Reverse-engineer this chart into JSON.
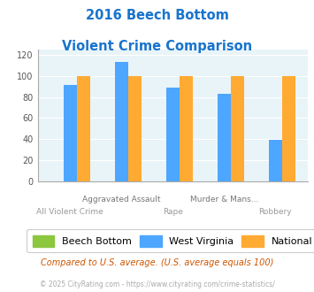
{
  "title_line1": "2016 Beech Bottom",
  "title_line2": "Violent Crime Comparison",
  "title_color": "#1874cd",
  "categories": [
    "All Violent Crime",
    "Aggravated Assault",
    "Rape",
    "Murder & Mans...",
    "Robbery"
  ],
  "top_labels": [
    "",
    "Aggravated Assault",
    "",
    "Murder & Mans...",
    ""
  ],
  "bottom_labels": [
    "All Violent Crime",
    "",
    "Rape",
    "",
    "Robbery"
  ],
  "beech_bottom": [
    0,
    0,
    0,
    0,
    0
  ],
  "west_virginia": [
    91,
    113,
    89,
    83,
    39
  ],
  "national": [
    100,
    100,
    100,
    100,
    100
  ],
  "bar_colors": {
    "beech_bottom": "#8dc63f",
    "west_virginia": "#4da6ff",
    "national": "#ffaa33"
  },
  "ylim": [
    0,
    125
  ],
  "yticks": [
    0,
    20,
    40,
    60,
    80,
    100,
    120
  ],
  "legend_labels": [
    "Beech Bottom",
    "West Virginia",
    "National"
  ],
  "footnote1": "Compared to U.S. average. (U.S. average equals 100)",
  "footnote2": "© 2025 CityRating.com - https://www.cityrating.com/crime-statistics/",
  "footnote1_color": "#cc5500",
  "footnote2_color": "#aaaaaa",
  "plot_bg_color": "#e8f4f8",
  "fig_bg_color": "#ffffff"
}
